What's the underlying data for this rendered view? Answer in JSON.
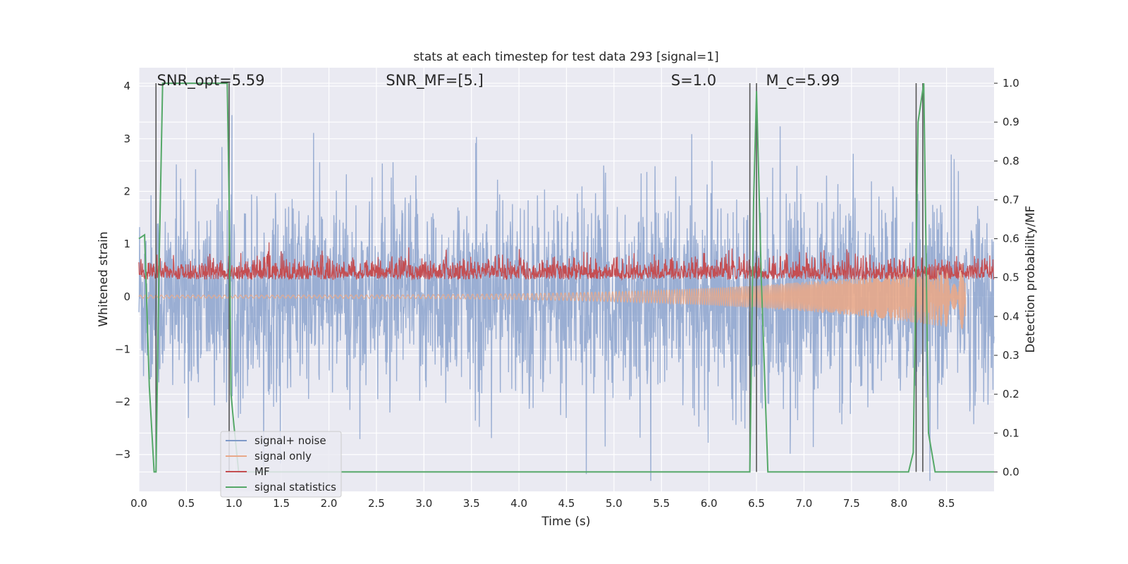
{
  "chart_data": {
    "type": "line",
    "title": "stats at each timestep for test data 293 [signal=1]",
    "xlabel": "Time (s)",
    "ylabel_left": "Whitened strain",
    "ylabel_right": "Detection probability/MF",
    "xlim": [
      0.0,
      9.0
    ],
    "ylim_left": [
      -3.7,
      4.35
    ],
    "ylim_right": [
      -0.05,
      1.04
    ],
    "grid": true,
    "x_ticks": [
      "0.0",
      "0.5",
      "1.0",
      "1.5",
      "2.0",
      "2.5",
      "3.0",
      "3.5",
      "4.0",
      "4.5",
      "5.0",
      "5.5",
      "6.0",
      "6.5",
      "7.0",
      "7.5",
      "8.0",
      "8.5"
    ],
    "y_ticks_left": [
      "−3",
      "−2",
      "−1",
      "0",
      "1",
      "2",
      "3",
      "4"
    ],
    "y_ticks_right": [
      "0.0",
      "0.1",
      "0.2",
      "0.3",
      "0.4",
      "0.5",
      "0.6",
      "0.7",
      "0.8",
      "0.9",
      "1.0"
    ],
    "annotations": [
      {
        "text": "SNR_opt=5.59",
        "x": 0.19
      },
      {
        "text": "SNR_MF=[5.]",
        "x": 2.6
      },
      {
        "text": "S=1.0",
        "x": 5.6
      },
      {
        "text": "M_c=5.99",
        "x": 6.6
      }
    ],
    "legend": {
      "position": "lower-left"
    },
    "series": [
      {
        "name": "signal+ noise",
        "color": "#7f99c8",
        "axis": "left",
        "style": "noise",
        "approx_std": 1.0,
        "approx_peaks": [
          3.4,
          3.2,
          3.3,
          -3.3
        ]
      },
      {
        "name": "signal only",
        "color": "#e8a88a",
        "axis": "left",
        "style": "chirp",
        "start_x": 0.0,
        "end_x": 8.7,
        "end_amplitude": -0.6
      },
      {
        "name": "MF",
        "color": "#c44e52",
        "axis": "right",
        "style": "noise",
        "baseline": 0.495,
        "approx_range": [
          0.49,
          0.62
        ]
      },
      {
        "name": "signal statistics",
        "color": "#55a868",
        "axis": "right",
        "x": [
          0.0,
          0.06,
          0.11,
          0.16,
          0.18,
          0.21,
          0.25,
          0.93,
          0.95,
          0.97,
          1.0,
          1.05,
          6.3,
          6.43,
          6.47,
          6.5,
          6.55,
          6.62,
          8.1,
          8.15,
          8.2,
          8.26,
          8.31,
          8.38,
          9.0
        ],
        "y": [
          0.6,
          0.61,
          0.22,
          0.0,
          0.0,
          0.5,
          1.0,
          1.0,
          0.7,
          0.2,
          0.12,
          0.0,
          0.0,
          0.0,
          0.7,
          0.98,
          0.5,
          0.0,
          0.0,
          0.05,
          0.9,
          1.0,
          0.1,
          0.0,
          0.0
        ]
      }
    ],
    "vlines": {
      "color": "#555555",
      "x": [
        0.18,
        0.95,
        6.43,
        6.5,
        8.18,
        8.25
      ]
    }
  }
}
